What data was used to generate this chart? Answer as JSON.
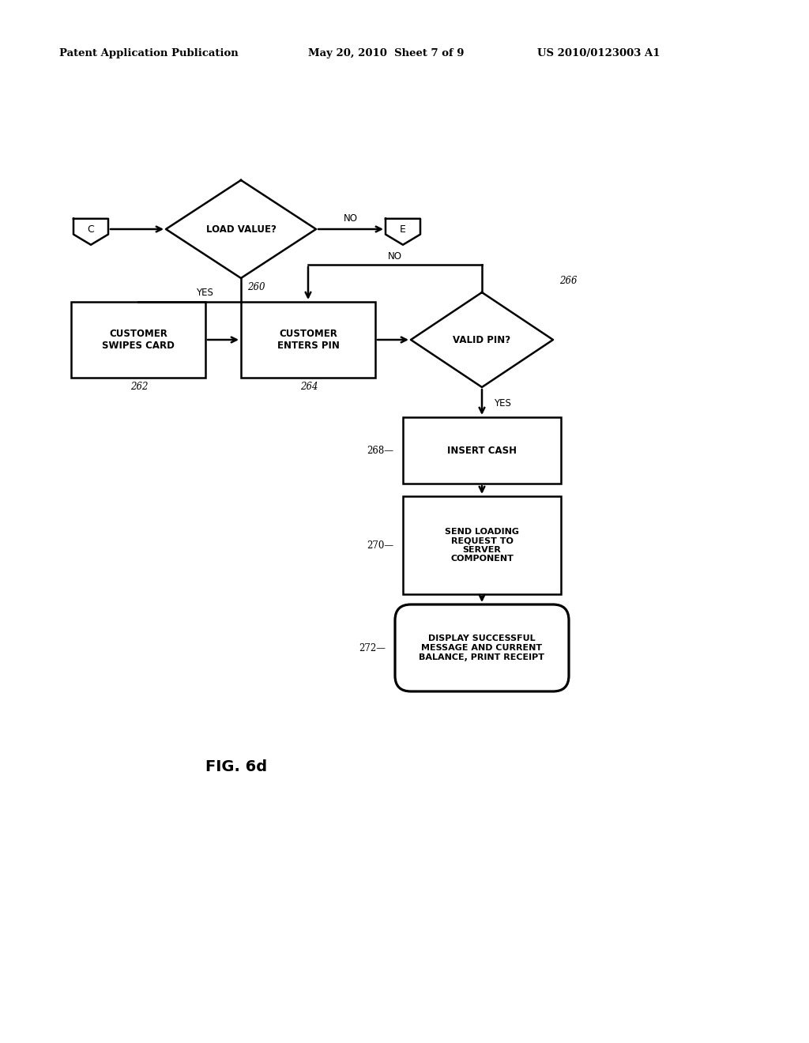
{
  "bg_color": "#ffffff",
  "header_left": "Patent Application Publication",
  "header_mid": "May 20, 2010  Sheet 7 of 9",
  "header_right": "US 2010/0123003 A1",
  "fig_label": "FIG. 6d",
  "figsize": [
    10.24,
    13.2
  ],
  "dpi": 100
}
